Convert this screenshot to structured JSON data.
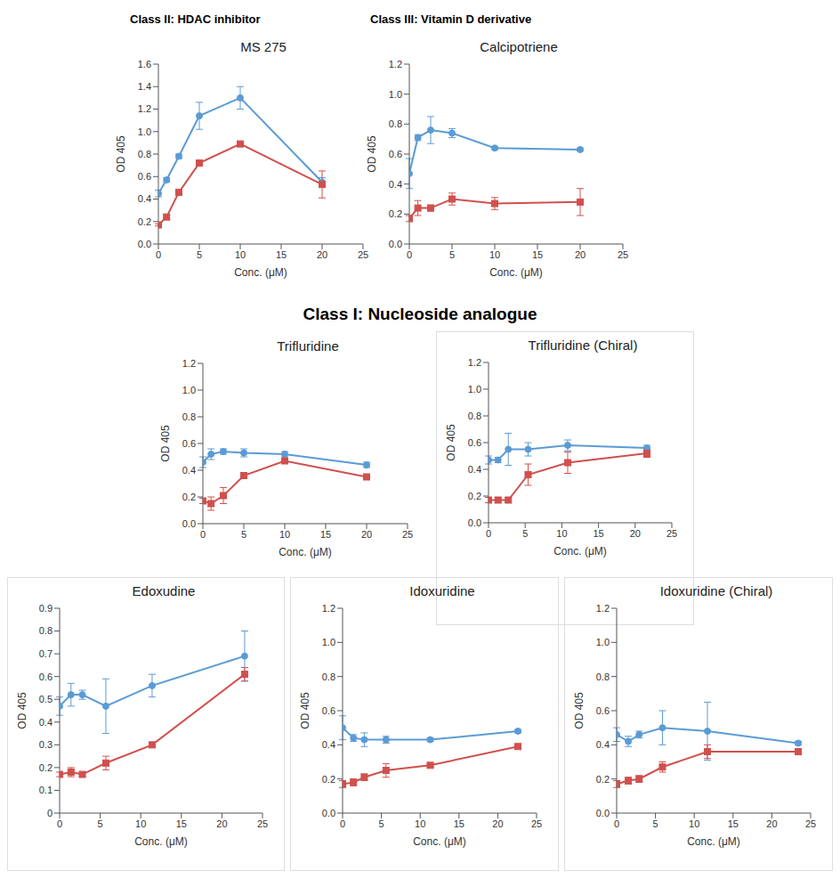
{
  "headings": [
    "Class II: HDAC inhibitor",
    "Class III: Vitamin D derivative",
    "Class I: Nucleoside analogue"
  ],
  "chart_data": [
    {
      "type": "line",
      "title": "MS 275",
      "x_label": "Conc. (μM)",
      "y_label": "OD 405",
      "grid": false,
      "x": [
        0,
        1,
        2.5,
        5,
        10,
        20
      ],
      "xlim": [
        0,
        25
      ],
      "xticks": [
        0,
        5,
        10,
        15,
        20,
        25
      ],
      "ylim": [
        0,
        1.6
      ],
      "yticks": [
        {
          "value": 0,
          "label": "0.0"
        },
        {
          "value": 0.2,
          "label": "0.2"
        },
        {
          "value": 0.4,
          "label": "0.4"
        },
        {
          "value": 0.6,
          "label": "0.6"
        },
        {
          "value": 0.8,
          "label": "0.8"
        },
        {
          "value": 1,
          "label": "1.0"
        },
        {
          "value": 1.2,
          "label": "1.2"
        },
        {
          "value": 1.4,
          "label": "1.4"
        },
        {
          "value": 1.6,
          "label": "1.6"
        }
      ],
      "series": [
        {
          "color": "#5b9bd5",
          "marker": "circle",
          "values": [
            0.45,
            0.57,
            0.78,
            1.14,
            1.3,
            0.55
          ],
          "errors": [
            0.03,
            0.02,
            0.02,
            0.12,
            0.1,
            0.04
          ]
        },
        {
          "color": "#d0504d",
          "marker": "square",
          "values": [
            0.17,
            0.24,
            0.46,
            0.72,
            0.89,
            0.53
          ],
          "errors": [
            0.01,
            0.02,
            0.02,
            0.02,
            0.02,
            0.12
          ]
        }
      ]
    },
    {
      "type": "line",
      "title": "Calcipotriene",
      "x_label": "Conc. (μM)",
      "y_label": "OD 405",
      "grid": false,
      "x": [
        0,
        1,
        2.5,
        5,
        10,
        20
      ],
      "xlim": [
        0,
        25
      ],
      "xticks": [
        0,
        5,
        10,
        15,
        20,
        25
      ],
      "ylim": [
        0,
        1.2
      ],
      "yticks": [
        {
          "value": 0,
          "label": "0.0"
        },
        {
          "value": 0.2,
          "label": "0.2"
        },
        {
          "value": 0.4,
          "label": "0.4"
        },
        {
          "value": 0.6,
          "label": "0.6"
        },
        {
          "value": 0.8,
          "label": "0.8"
        },
        {
          "value": 1,
          "label": "1.0"
        },
        {
          "value": 1.2,
          "label": "1.2"
        }
      ],
      "series": [
        {
          "color": "#5b9bd5",
          "marker": "circle",
          "values": [
            0.47,
            0.71,
            0.76,
            0.74,
            0.64,
            0.63
          ],
          "errors": [
            0.1,
            0.02,
            0.09,
            0.03,
            0.01,
            0.01
          ]
        },
        {
          "color": "#d0504d",
          "marker": "square",
          "values": [
            0.17,
            0.24,
            0.24,
            0.3,
            0.27,
            0.28
          ],
          "errors": [
            0.02,
            0.05,
            0.02,
            0.04,
            0.04,
            0.09
          ]
        }
      ]
    },
    {
      "type": "line",
      "title": "Trifluridine",
      "x_label": "Conc. (μM)",
      "y_label": "OD 405",
      "grid": false,
      "x": [
        0,
        1,
        2.5,
        5,
        10,
        20
      ],
      "xlim": [
        0,
        25
      ],
      "xticks": [
        0,
        5,
        10,
        15,
        20,
        25
      ],
      "ylim": [
        0,
        1.2
      ],
      "yticks": [
        {
          "value": 0,
          "label": "0.0"
        },
        {
          "value": 0.2,
          "label": "0.2"
        },
        {
          "value": 0.4,
          "label": "0.4"
        },
        {
          "value": 0.6,
          "label": "0.6"
        },
        {
          "value": 0.8,
          "label": "0.8"
        },
        {
          "value": 1,
          "label": "1.0"
        },
        {
          "value": 1.2,
          "label": "1.2"
        }
      ],
      "series": [
        {
          "color": "#5b9bd5",
          "marker": "circle",
          "values": [
            0.46,
            0.52,
            0.54,
            0.53,
            0.52,
            0.44
          ],
          "errors": [
            0.04,
            0.04,
            0.02,
            0.03,
            0.02,
            0.02
          ]
        },
        {
          "color": "#d0504d",
          "marker": "square",
          "values": [
            0.17,
            0.15,
            0.21,
            0.36,
            0.47,
            0.35
          ],
          "errors": [
            0.02,
            0.05,
            0.06,
            0.01,
            0.01,
            0.02
          ]
        }
      ]
    },
    {
      "type": "line",
      "title": "Trifluridine (Chiral)",
      "x_label": "Conc. (μM)",
      "y_label": "OD 405",
      "grid": false,
      "x": [
        0,
        1.3,
        2.7,
        5.4,
        10.8,
        21.6
      ],
      "xlim": [
        0,
        25
      ],
      "xticks": [
        0,
        5,
        10,
        15,
        20,
        25
      ],
      "ylim": [
        0,
        1.2
      ],
      "yticks": [
        {
          "value": 0,
          "label": "0.0"
        },
        {
          "value": 0.2,
          "label": "0.2"
        },
        {
          "value": 0.4,
          "label": "0.4"
        },
        {
          "value": 0.6,
          "label": "0.6"
        },
        {
          "value": 0.8,
          "label": "0.8"
        },
        {
          "value": 1,
          "label": "1.0"
        },
        {
          "value": 1.2,
          "label": "1.2"
        }
      ],
      "series": [
        {
          "color": "#5b9bd5",
          "marker": "circle",
          "values": [
            0.47,
            0.47,
            0.55,
            0.55,
            0.58,
            0.56
          ],
          "errors": [
            0.03,
            0.02,
            0.12,
            0.05,
            0.04,
            0.02
          ]
        },
        {
          "color": "#d0504d",
          "marker": "square",
          "values": [
            0.17,
            0.17,
            0.17,
            0.36,
            0.45,
            0.52
          ],
          "errors": [
            0.02,
            0.02,
            0.02,
            0.08,
            0.08,
            0.03
          ]
        }
      ]
    },
    {
      "type": "line",
      "title": "Edoxudine",
      "x_label": "Conc. (μM)",
      "y_label": "OD 405",
      "grid": false,
      "x": [
        0,
        1.4,
        2.8,
        5.7,
        11.4,
        22.8
      ],
      "xlim": [
        0,
        25
      ],
      "xticks": [
        0,
        5,
        10,
        15,
        20,
        25
      ],
      "ylim": [
        0,
        0.9
      ],
      "yticks": [
        0,
        0.1,
        0.2,
        0.3,
        0.4,
        0.5,
        0.6,
        0.7,
        0.8,
        0.9
      ],
      "series": [
        {
          "color": "#5b9bd5",
          "marker": "circle",
          "values": [
            0.47,
            0.52,
            0.52,
            0.47,
            0.56,
            0.69
          ],
          "errors": [
            0.04,
            0.05,
            0.02,
            0.12,
            0.05,
            0.11
          ]
        },
        {
          "color": "#d0504d",
          "marker": "square",
          "values": [
            0.17,
            0.18,
            0.17,
            0.22,
            0.3,
            0.61
          ],
          "errors": [
            0.01,
            0.02,
            0.01,
            0.03,
            0.01,
            0.03
          ]
        }
      ]
    },
    {
      "type": "line",
      "title": "Idoxuridine",
      "x_label": "Conc. (μM)",
      "y_label": "OD 405",
      "grid": false,
      "x": [
        0,
        1.4,
        2.8,
        5.6,
        11.3,
        22.6
      ],
      "xlim": [
        0,
        25
      ],
      "xticks": [
        0,
        5,
        10,
        15,
        20,
        25
      ],
      "ylim": [
        0,
        1.2
      ],
      "yticks": [
        {
          "value": 0,
          "label": "0.0"
        },
        {
          "value": 0.2,
          "label": "0.2"
        },
        {
          "value": 0.4,
          "label": "0.4"
        },
        {
          "value": 0.6,
          "label": "0.6"
        },
        {
          "value": 0.8,
          "label": "0.8"
        },
        {
          "value": 1,
          "label": "1.0"
        },
        {
          "value": 1.2,
          "label": "1.2"
        }
      ],
      "series": [
        {
          "color": "#5b9bd5",
          "marker": "circle",
          "values": [
            0.5,
            0.44,
            0.43,
            0.43,
            0.43,
            0.48
          ],
          "errors": [
            0.07,
            0.02,
            0.04,
            0.02,
            0.01,
            0.01
          ]
        },
        {
          "color": "#d0504d",
          "marker": "square",
          "values": [
            0.17,
            0.18,
            0.21,
            0.25,
            0.28,
            0.39
          ],
          "errors": [
            0.02,
            0.02,
            0.02,
            0.04,
            0.01,
            0.01
          ]
        }
      ]
    },
    {
      "type": "line",
      "title": "Idoxuridine (Chiral)",
      "x_label": "Conc. (μM)",
      "y_label": "OD 405",
      "grid": false,
      "x": [
        0,
        1.5,
        2.9,
        5.9,
        11.7,
        23.4
      ],
      "xlim": [
        0,
        25
      ],
      "xticks": [
        0,
        5,
        10,
        15,
        20,
        25
      ],
      "ylim": [
        0,
        1.2
      ],
      "yticks": [
        {
          "value": 0,
          "label": "0.0"
        },
        {
          "value": 0.2,
          "label": "0.2"
        },
        {
          "value": 0.4,
          "label": "0.4"
        },
        {
          "value": 0.6,
          "label": "0.6"
        },
        {
          "value": 0.8,
          "label": "0.8"
        },
        {
          "value": 1,
          "label": "1.0"
        },
        {
          "value": 1.2,
          "label": "1.2"
        }
      ],
      "series": [
        {
          "color": "#5b9bd5",
          "marker": "circle",
          "values": [
            0.46,
            0.42,
            0.46,
            0.5,
            0.48,
            0.41
          ],
          "errors": [
            0.04,
            0.03,
            0.02,
            0.1,
            0.17,
            0.01
          ]
        },
        {
          "color": "#d0504d",
          "marker": "square",
          "values": [
            0.17,
            0.19,
            0.2,
            0.27,
            0.36,
            0.36
          ],
          "errors": [
            0.02,
            0.02,
            0.02,
            0.03,
            0.04,
            0.01
          ]
        }
      ]
    }
  ]
}
